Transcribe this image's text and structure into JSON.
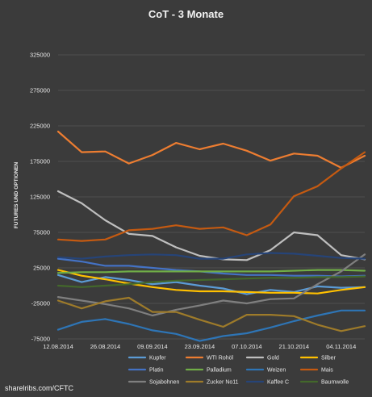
{
  "chart_data": {
    "type": "line",
    "title": "CoT - 3 Monate",
    "ylabel": "FUTURES UND OPTIONEN",
    "xlabel": "",
    "ylim": [
      -75000,
      325000
    ],
    "yticks": [
      325000,
      275000,
      225000,
      175000,
      125000,
      75000,
      25000,
      -25000,
      -75000
    ],
    "ytick_labels": [
      "325000",
      "275000",
      "225000",
      "175000",
      "125000",
      "75000",
      "25000",
      "-25000",
      "-75000"
    ],
    "x": [
      "12.08.2014",
      "19.08.2014",
      "26.08.2014",
      "02.09.2014",
      "09.09.2014",
      "16.09.2014",
      "23.09.2014",
      "30.09.2014",
      "07.10.2014",
      "14.10.2014",
      "21.10.2014",
      "28.10.2014",
      "04.11.2014",
      "11.11.2014"
    ],
    "xtick_labels": [
      "12.08.2014",
      "26.08.2014",
      "09.09.2014",
      "23.09.2014",
      "07.10.2014",
      "21.10.2014",
      "04.11.2014"
    ],
    "grid": true,
    "legend_position": "bottom",
    "series": [
      {
        "name": "Kupfer",
        "color": "#5b9bd5",
        "values": [
          15000,
          5000,
          12000,
          8000,
          2000,
          5000,
          0,
          -4000,
          -12000,
          -6000,
          -9000,
          -1000,
          -3000,
          -2000
        ]
      },
      {
        "name": "WTI Rohöl",
        "color": "#ed7d31",
        "values": [
          217000,
          188000,
          189000,
          172000,
          184000,
          201000,
          192000,
          200000,
          190000,
          176000,
          186000,
          183000,
          166000,
          183000
        ]
      },
      {
        "name": "Gold",
        "color": "#bfbfbf",
        "values": [
          133000,
          116000,
          92000,
          73000,
          70000,
          54000,
          42000,
          37000,
          36000,
          50000,
          75000,
          71000,
          43000,
          37000
        ]
      },
      {
        "name": "Silber",
        "color": "#ffc000",
        "values": [
          22000,
          14000,
          9000,
          3000,
          -2000,
          -6000,
          -8000,
          -8000,
          -9000,
          -10000,
          -10000,
          -11000,
          -6000,
          -2000
        ]
      },
      {
        "name": "Platin",
        "color": "#4472c4",
        "values": [
          38000,
          34000,
          28000,
          28000,
          25000,
          22000,
          20000,
          17000,
          15000,
          15000,
          14000,
          14000,
          13000,
          14000
        ]
      },
      {
        "name": "Palladium",
        "color": "#70ad47",
        "values": [
          18000,
          19000,
          19000,
          20000,
          20000,
          20000,
          20000,
          20000,
          20000,
          20000,
          21000,
          22000,
          22000,
          21000
        ]
      },
      {
        "name": "Weizen",
        "color": "#2e75b6",
        "values": [
          -62000,
          -51000,
          -47000,
          -54000,
          -63000,
          -68000,
          -78000,
          -71000,
          -67000,
          -59000,
          -50000,
          -42000,
          -35000,
          -35000
        ]
      },
      {
        "name": "Mais",
        "color": "#c55a11",
        "values": [
          65000,
          63000,
          65000,
          78000,
          80000,
          85000,
          80000,
          82000,
          71000,
          86000,
          126000,
          140000,
          165000,
          188000
        ]
      },
      {
        "name": "Sojabohnen",
        "color": "#7f7f7f",
        "values": [
          -16000,
          -21000,
          -26000,
          -32000,
          -42000,
          -34000,
          -28000,
          -21000,
          -25000,
          -19000,
          -18000,
          2000,
          20000,
          44000
        ]
      },
      {
        "name": "Zucker No11",
        "color": "#9e7b2a",
        "values": [
          -21000,
          -32000,
          -22000,
          -17000,
          -37000,
          -37000,
          -48000,
          -58000,
          -41000,
          -41000,
          -43000,
          -55000,
          -64000,
          -57000
        ]
      },
      {
        "name": "Kaffee C",
        "color": "#264478",
        "values": [
          40000,
          38000,
          41000,
          43000,
          44000,
          43000,
          38000,
          38000,
          44000,
          46000,
          45000,
          42000,
          39000,
          38000
        ]
      },
      {
        "name": "Baumwolle",
        "color": "#43682b",
        "values": [
          0,
          -2000,
          0,
          2000,
          5000,
          7000,
          8000,
          9000,
          10000,
          11000,
          11000,
          12000,
          12000,
          13000
        ]
      }
    ]
  },
  "footer": {
    "source": "sharelribs.com/CFTC"
  }
}
